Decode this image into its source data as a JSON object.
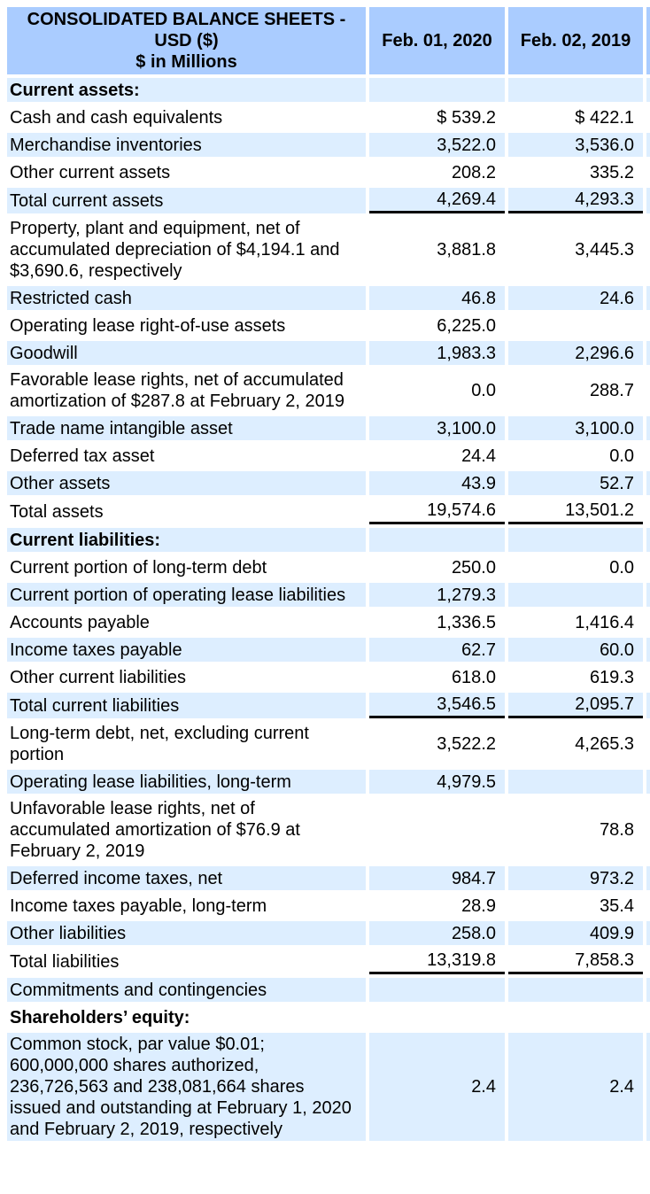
{
  "colors": {
    "header_bg": "#aaccff",
    "row_bg": "#ddeeff",
    "text_color": "#000000",
    "page_bg": "#ffffff"
  },
  "table": {
    "title": "CONSOLIDATED BALANCE SHEETS - USD ($)",
    "subtitle": "$ in Millions",
    "columns": [
      "Feb. 01, 2020",
      "Feb. 02, 2019"
    ],
    "rows": [
      {
        "label": "Current assets:",
        "section": true,
        "values": [
          "",
          ""
        ]
      },
      {
        "label": "Cash and cash equivalents",
        "values": [
          "$ 539.2",
          "$ 422.1"
        ]
      },
      {
        "label": "Merchandise inventories",
        "values": [
          "3,522.0",
          "3,536.0"
        ]
      },
      {
        "label": "Other current assets",
        "values": [
          "208.2",
          "335.2"
        ]
      },
      {
        "label": "Total current assets",
        "total": true,
        "values": [
          "4,269.4",
          "4,293.3"
        ]
      },
      {
        "label": "Property, plant and equipment, net of accumulated depreciation of $4,194.1 and $3,690.6, respectively",
        "values": [
          "3,881.8",
          "3,445.3"
        ]
      },
      {
        "label": "Restricted cash",
        "values": [
          "46.8",
          "24.6"
        ]
      },
      {
        "label": "Operating lease right-of-use assets",
        "values": [
          "6,225.0",
          ""
        ]
      },
      {
        "label": "Goodwill",
        "values": [
          "1,983.3",
          "2,296.6"
        ]
      },
      {
        "label": "Favorable lease rights, net of accumulated amortization of $287.8 at February 2, 2019",
        "values": [
          "0.0",
          "288.7"
        ]
      },
      {
        "label": "Trade name intangible asset",
        "values": [
          "3,100.0",
          "3,100.0"
        ]
      },
      {
        "label": "Deferred tax asset",
        "values": [
          "24.4",
          "0.0"
        ]
      },
      {
        "label": "Other assets",
        "values": [
          "43.9",
          "52.7"
        ]
      },
      {
        "label": "Total assets",
        "total": true,
        "values": [
          "19,574.6",
          "13,501.2"
        ]
      },
      {
        "label": "Current liabilities:",
        "section": true,
        "values": [
          "",
          ""
        ]
      },
      {
        "label": "Current portion of long-term debt",
        "values": [
          "250.0",
          "0.0"
        ]
      },
      {
        "label": "Current portion of operating lease liabilities",
        "values": [
          "1,279.3",
          ""
        ]
      },
      {
        "label": "Accounts payable",
        "values": [
          "1,336.5",
          "1,416.4"
        ]
      },
      {
        "label": "Income taxes payable",
        "values": [
          "62.7",
          "60.0"
        ]
      },
      {
        "label": "Other current liabilities",
        "values": [
          "618.0",
          "619.3"
        ]
      },
      {
        "label": "Total current liabilities",
        "total": true,
        "values": [
          "3,546.5",
          "2,095.7"
        ]
      },
      {
        "label": "Long-term debt, net, excluding current portion",
        "values": [
          "3,522.2",
          "4,265.3"
        ]
      },
      {
        "label": "Operating lease liabilities, long-term",
        "values": [
          "4,979.5",
          ""
        ]
      },
      {
        "label": "Unfavorable lease rights, net of accumulated amortization of $76.9 at February 2, 2019",
        "values": [
          "",
          "78.8"
        ]
      },
      {
        "label": "Deferred income taxes, net",
        "values": [
          "984.7",
          "973.2"
        ]
      },
      {
        "label": "Income taxes payable, long-term",
        "values": [
          "28.9",
          "35.4"
        ]
      },
      {
        "label": "Other liabilities",
        "values": [
          "258.0",
          "409.9"
        ]
      },
      {
        "label": "Total liabilities",
        "total": true,
        "values": [
          "13,319.8",
          "7,858.3"
        ]
      },
      {
        "label": "Commitments and contingencies",
        "values": [
          "",
          ""
        ]
      },
      {
        "label": "Shareholders’ equity:",
        "section": true,
        "values": [
          "",
          ""
        ]
      },
      {
        "label": "Common stock, par value $0.01; 600,000,000 shares authorized, 236,726,563 and 238,081,664 shares issued and outstanding at February 1, 2020 and February 2, 2019, respectively",
        "values": [
          "2.4",
          "2.4"
        ]
      }
    ]
  }
}
